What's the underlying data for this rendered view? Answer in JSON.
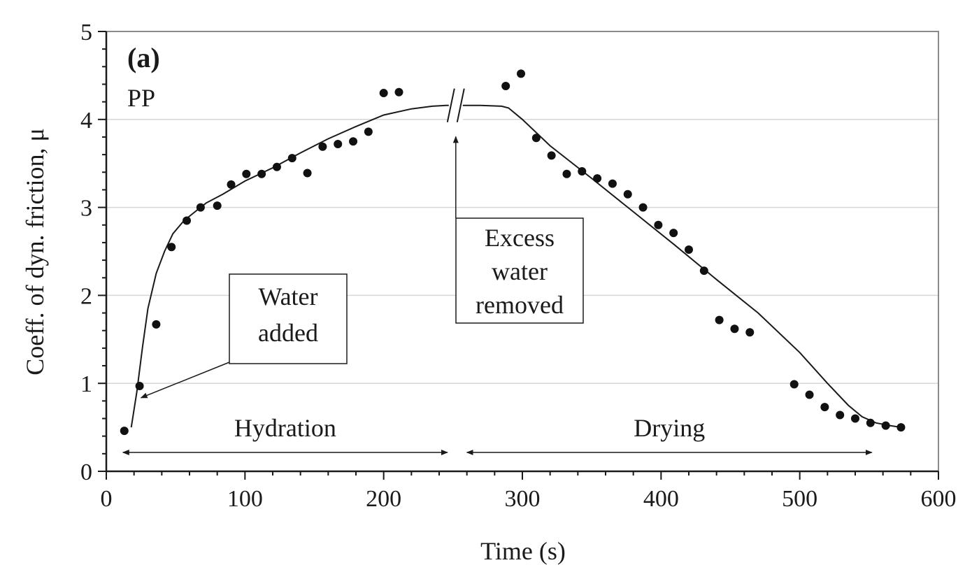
{
  "chart_data": {
    "type": "scatter",
    "panel_label": "(a)",
    "sample_label": "PP",
    "xlabel": "Time (s)",
    "ylabel": "Coeff. of dyn. friction, μ",
    "xlim": [
      0,
      600
    ],
    "ylim": [
      0,
      5
    ],
    "x_ticks": [
      "0",
      "100",
      "200",
      "300",
      "400",
      "500",
      "600"
    ],
    "y_ticks": [
      "0",
      "1",
      "2",
      "3",
      "4",
      "5"
    ],
    "grid": "horizontal",
    "series": [
      {
        "kind": "points",
        "x": [
          13,
          24,
          36,
          47,
          58,
          68,
          80,
          90,
          101,
          112,
          123,
          134,
          145,
          156,
          167,
          178,
          189,
          200,
          211,
          288,
          299,
          310,
          321,
          332,
          343,
          354,
          365,
          376,
          387,
          398,
          409,
          420,
          431,
          442,
          453,
          464,
          496,
          507,
          518,
          529,
          540,
          551,
          562,
          573
        ],
        "y": [
          0.46,
          0.97,
          1.67,
          2.55,
          2.85,
          3.0,
          3.02,
          3.26,
          3.38,
          3.38,
          3.46,
          3.56,
          3.39,
          3.69,
          3.72,
          3.75,
          3.86,
          4.3,
          4.31,
          4.38,
          4.52,
          3.79,
          3.59,
          3.38,
          3.41,
          3.33,
          3.27,
          3.15,
          3.0,
          2.8,
          2.71,
          2.52,
          2.28,
          1.72,
          1.62,
          1.58,
          0.99,
          0.87,
          0.73,
          0.64,
          0.6,
          0.55,
          0.52,
          0.5
        ]
      },
      {
        "kind": "line",
        "x": [
          18,
          22,
          26,
          30,
          36,
          42,
          48,
          56,
          64,
          72,
          84,
          100,
          120,
          140,
          160,
          180,
          200,
          220,
          235,
          245,
          258,
          270,
          285,
          290,
          300,
          320,
          350,
          380,
          410,
          440,
          470,
          500,
          520,
          535,
          545,
          555,
          565,
          573
        ],
        "y": [
          0.5,
          0.9,
          1.4,
          1.85,
          2.25,
          2.5,
          2.7,
          2.85,
          2.95,
          3.05,
          3.15,
          3.3,
          3.45,
          3.62,
          3.78,
          3.92,
          4.05,
          4.12,
          4.15,
          4.16,
          4.16,
          4.16,
          4.15,
          4.13,
          4.0,
          3.7,
          3.33,
          2.95,
          2.57,
          2.18,
          1.8,
          1.35,
          1.0,
          0.75,
          0.62,
          0.55,
          0.52,
          0.5
        ]
      }
    ],
    "axis_break_x": 252,
    "annotations": [
      {
        "lines": [
          "Water",
          "added"
        ],
        "arrow_to": [
          24,
          0.82
        ]
      },
      {
        "lines": [
          "Excess",
          "water",
          "removed"
        ],
        "arrow_to": [
          252,
          3.9
        ]
      }
    ],
    "phases": [
      {
        "label": "Hydration",
        "x_start": 12,
        "x_end": 246
      },
      {
        "label": "Drying",
        "x_start": 260,
        "x_end": 552
      }
    ]
  }
}
